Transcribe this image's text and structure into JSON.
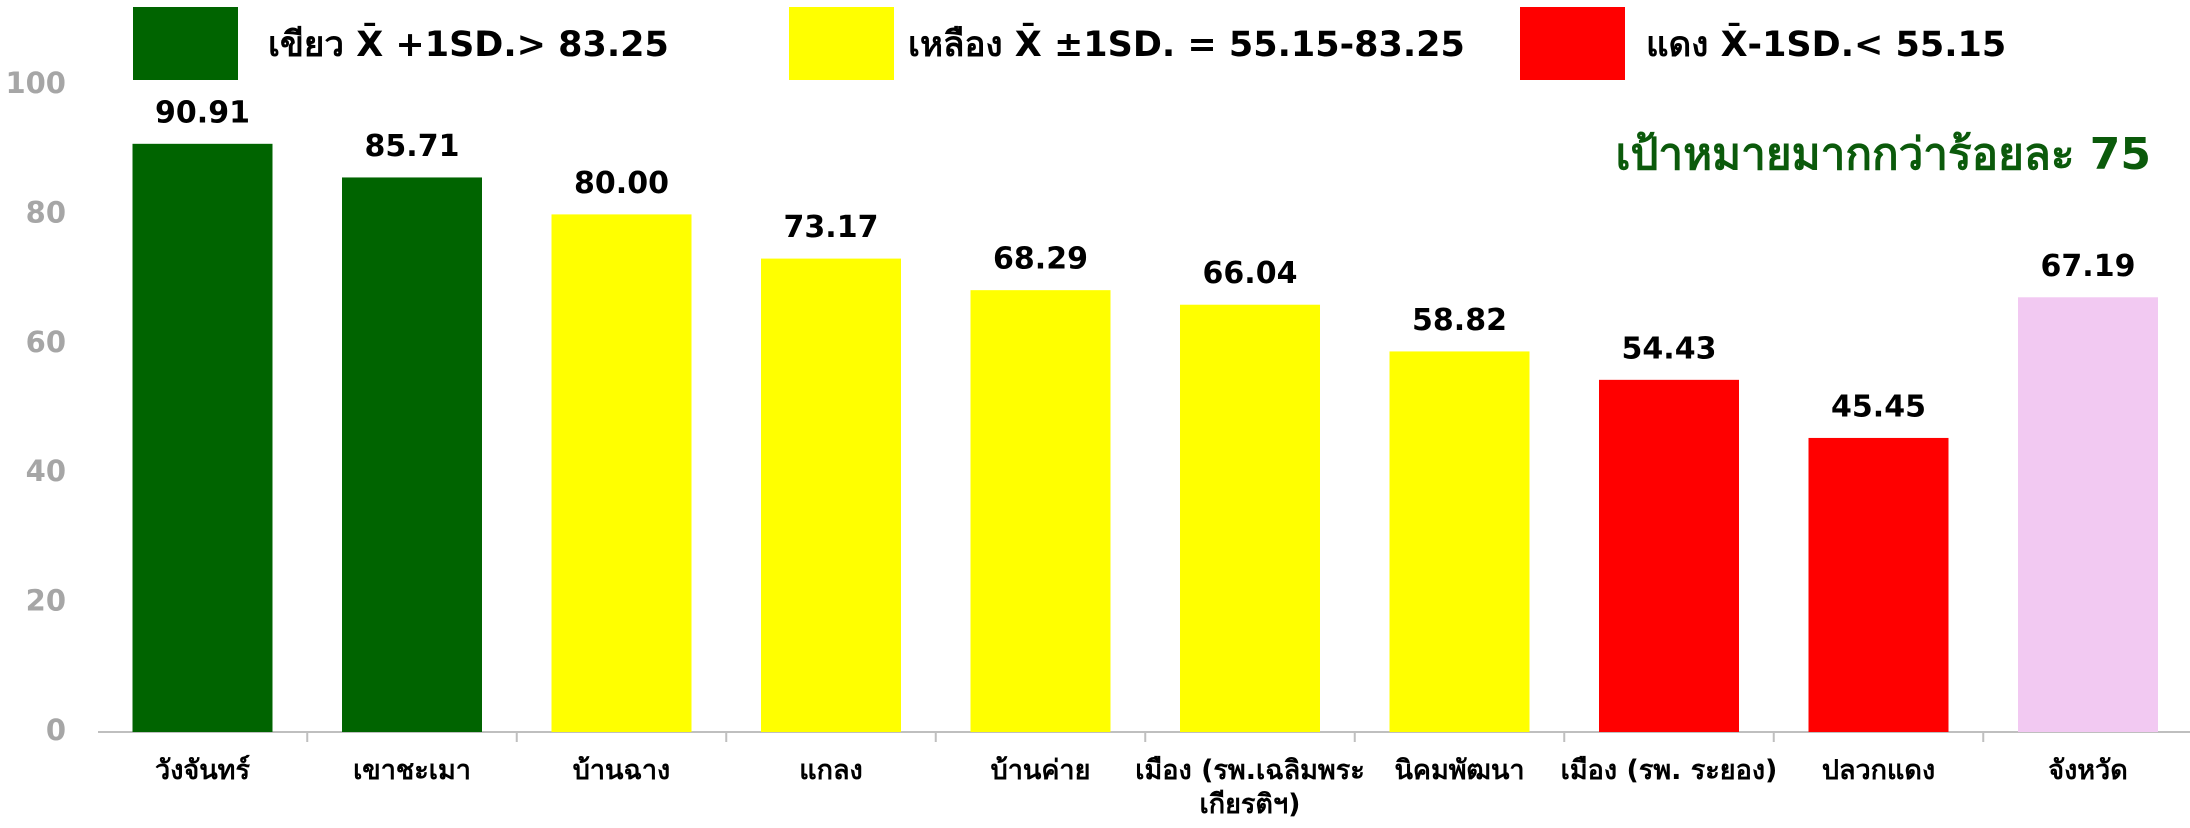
{
  "chart_data": {
    "type": "bar",
    "annotation": "เป้าหมายมากกว่าร้อยละ 75",
    "legend": [
      {
        "name": "เขียว X̄ +1SD.> 83.25",
        "color": "#006400"
      },
      {
        "name": "เหลือง X̄ ±1SD. = 55.15-83.25",
        "color": "#ffff00"
      },
      {
        "name": "แดง X̄-1SD.< 55.15",
        "color": "#ff0000"
      }
    ],
    "categories": [
      "วังจันทร์",
      "เขาชะเมา",
      "บ้านฉาง",
      "แกลง",
      "บ้านค่าย",
      "เมือง (รพ.เฉลิมพระเกียรติฯ)",
      "นิคมพัฒนา",
      "เมือง (รพ. ระยอง)",
      "ปลวกแดง",
      "จังหวัด"
    ],
    "values": [
      90.91,
      85.71,
      80.0,
      73.17,
      68.29,
      66.04,
      58.82,
      54.43,
      45.45,
      67.19
    ],
    "value_labels": [
      "90.91",
      "85.71",
      "80.00",
      "73.17",
      "68.29",
      "66.04",
      "58.82",
      "54.43",
      "45.45",
      "67.19"
    ],
    "colors": [
      "#006400",
      "#006400",
      "#ffff00",
      "#ffff00",
      "#ffff00",
      "#ffff00",
      "#ffff00",
      "#ff0000",
      "#ff0000",
      "#f2c9f2"
    ],
    "ylim": [
      0,
      100
    ],
    "yticks": [
      0,
      20,
      40,
      60,
      80,
      100
    ],
    "grid": false
  }
}
